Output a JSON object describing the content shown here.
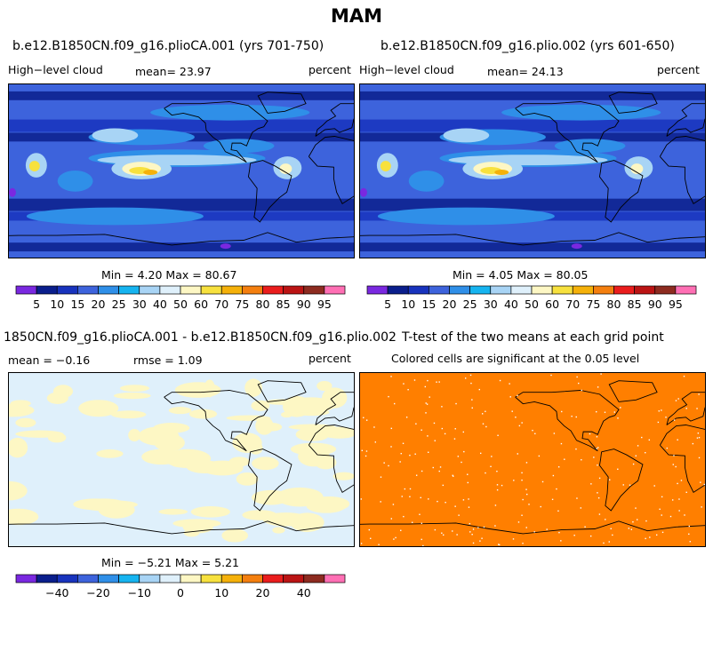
{
  "suptitle": "MAM",
  "colors": {
    "palette": [
      "#7a28e0",
      "#0a1e8c",
      "#1833bd",
      "#3d63dc",
      "#2f8fe8",
      "#16b4f0",
      "#a8d4f5",
      "#dff0fb",
      "#fdf7c4",
      "#f7e13e",
      "#f5b10a",
      "#f47f0f",
      "#ea1d1d",
      "#bb1414",
      "#8d2b20",
      "#ff6fb4"
    ],
    "ttest_fill": "#ff7f00",
    "ttest_dots": "#ffffff"
  },
  "panels": [
    {
      "title": "b.e12.B1850CN.f09_g16.plioCA.001 (yrs 701-750)",
      "left_label": "High−level cloud",
      "center_label": "mean=  23.97",
      "right_label": "percent",
      "stats": "Min =   4.20 Max =  80.67"
    },
    {
      "title": "b.e12.B1850CN.f09_g16.plio.002 (yrs 601-650)",
      "left_label": "High−level cloud",
      "center_label": "mean=  24.13",
      "right_label": "percent",
      "stats": "Min =   4.05 Max =  80.05"
    },
    {
      "title": "1850CN.f09_g16.plioCA.001 - b.e12.B1850CN.f09_g16.plio.002",
      "left_label": "mean =  −0.16",
      "center_label": "rmse =    1.09",
      "right_label": "percent",
      "stats": "Min =  −5.21 Max =   5.21"
    },
    {
      "title": "T-test of the two means at each grid point",
      "subtitle": "Colored cells are significant at the 0.05 level"
    }
  ],
  "chart_data": [
    {
      "type": "heatmap",
      "title": "b.e12.B1850CN.f09_g16.plioCA.001 (yrs 701-750)",
      "variable": "High-level cloud",
      "units": "percent",
      "mean": 23.97,
      "min": 4.2,
      "max": 80.67,
      "colorbar_levels": [
        5,
        10,
        15,
        20,
        25,
        30,
        40,
        50,
        60,
        70,
        75,
        80,
        85,
        90,
        95
      ],
      "colorbar_labels": [
        "5",
        "10",
        "15",
        "20",
        "25",
        "30",
        "40",
        "50",
        "60",
        "70",
        "75",
        "80",
        "85",
        "90",
        "95"
      ],
      "projection": "cylindrical-equidistant, centered on dateline"
    },
    {
      "type": "heatmap",
      "title": "b.e12.B1850CN.f09_g16.plio.002 (yrs 601-650)",
      "variable": "High-level cloud",
      "units": "percent",
      "mean": 24.13,
      "min": 4.05,
      "max": 80.05,
      "colorbar_levels": [
        5,
        10,
        15,
        20,
        25,
        30,
        40,
        50,
        60,
        70,
        75,
        80,
        85,
        90,
        95
      ],
      "colorbar_labels": [
        "5",
        "10",
        "15",
        "20",
        "25",
        "30",
        "40",
        "50",
        "60",
        "70",
        "75",
        "80",
        "85",
        "90",
        "95"
      ]
    },
    {
      "type": "heatmap",
      "title": "1850CN.f09_g16.plioCA.001 - b.e12.B1850CN.f09_g16.plio.002",
      "units": "percent",
      "mean": -0.16,
      "rmse": 1.09,
      "min": -5.21,
      "max": 5.21,
      "colorbar_labels": [
        "−40",
        "−20",
        "−10",
        "0",
        "10",
        "20",
        "40"
      ]
    },
    {
      "type": "heatmap",
      "title": "T-test of the two means at each grid point",
      "subtitle": "Colored cells are significant at the 0.05 level"
    }
  ]
}
